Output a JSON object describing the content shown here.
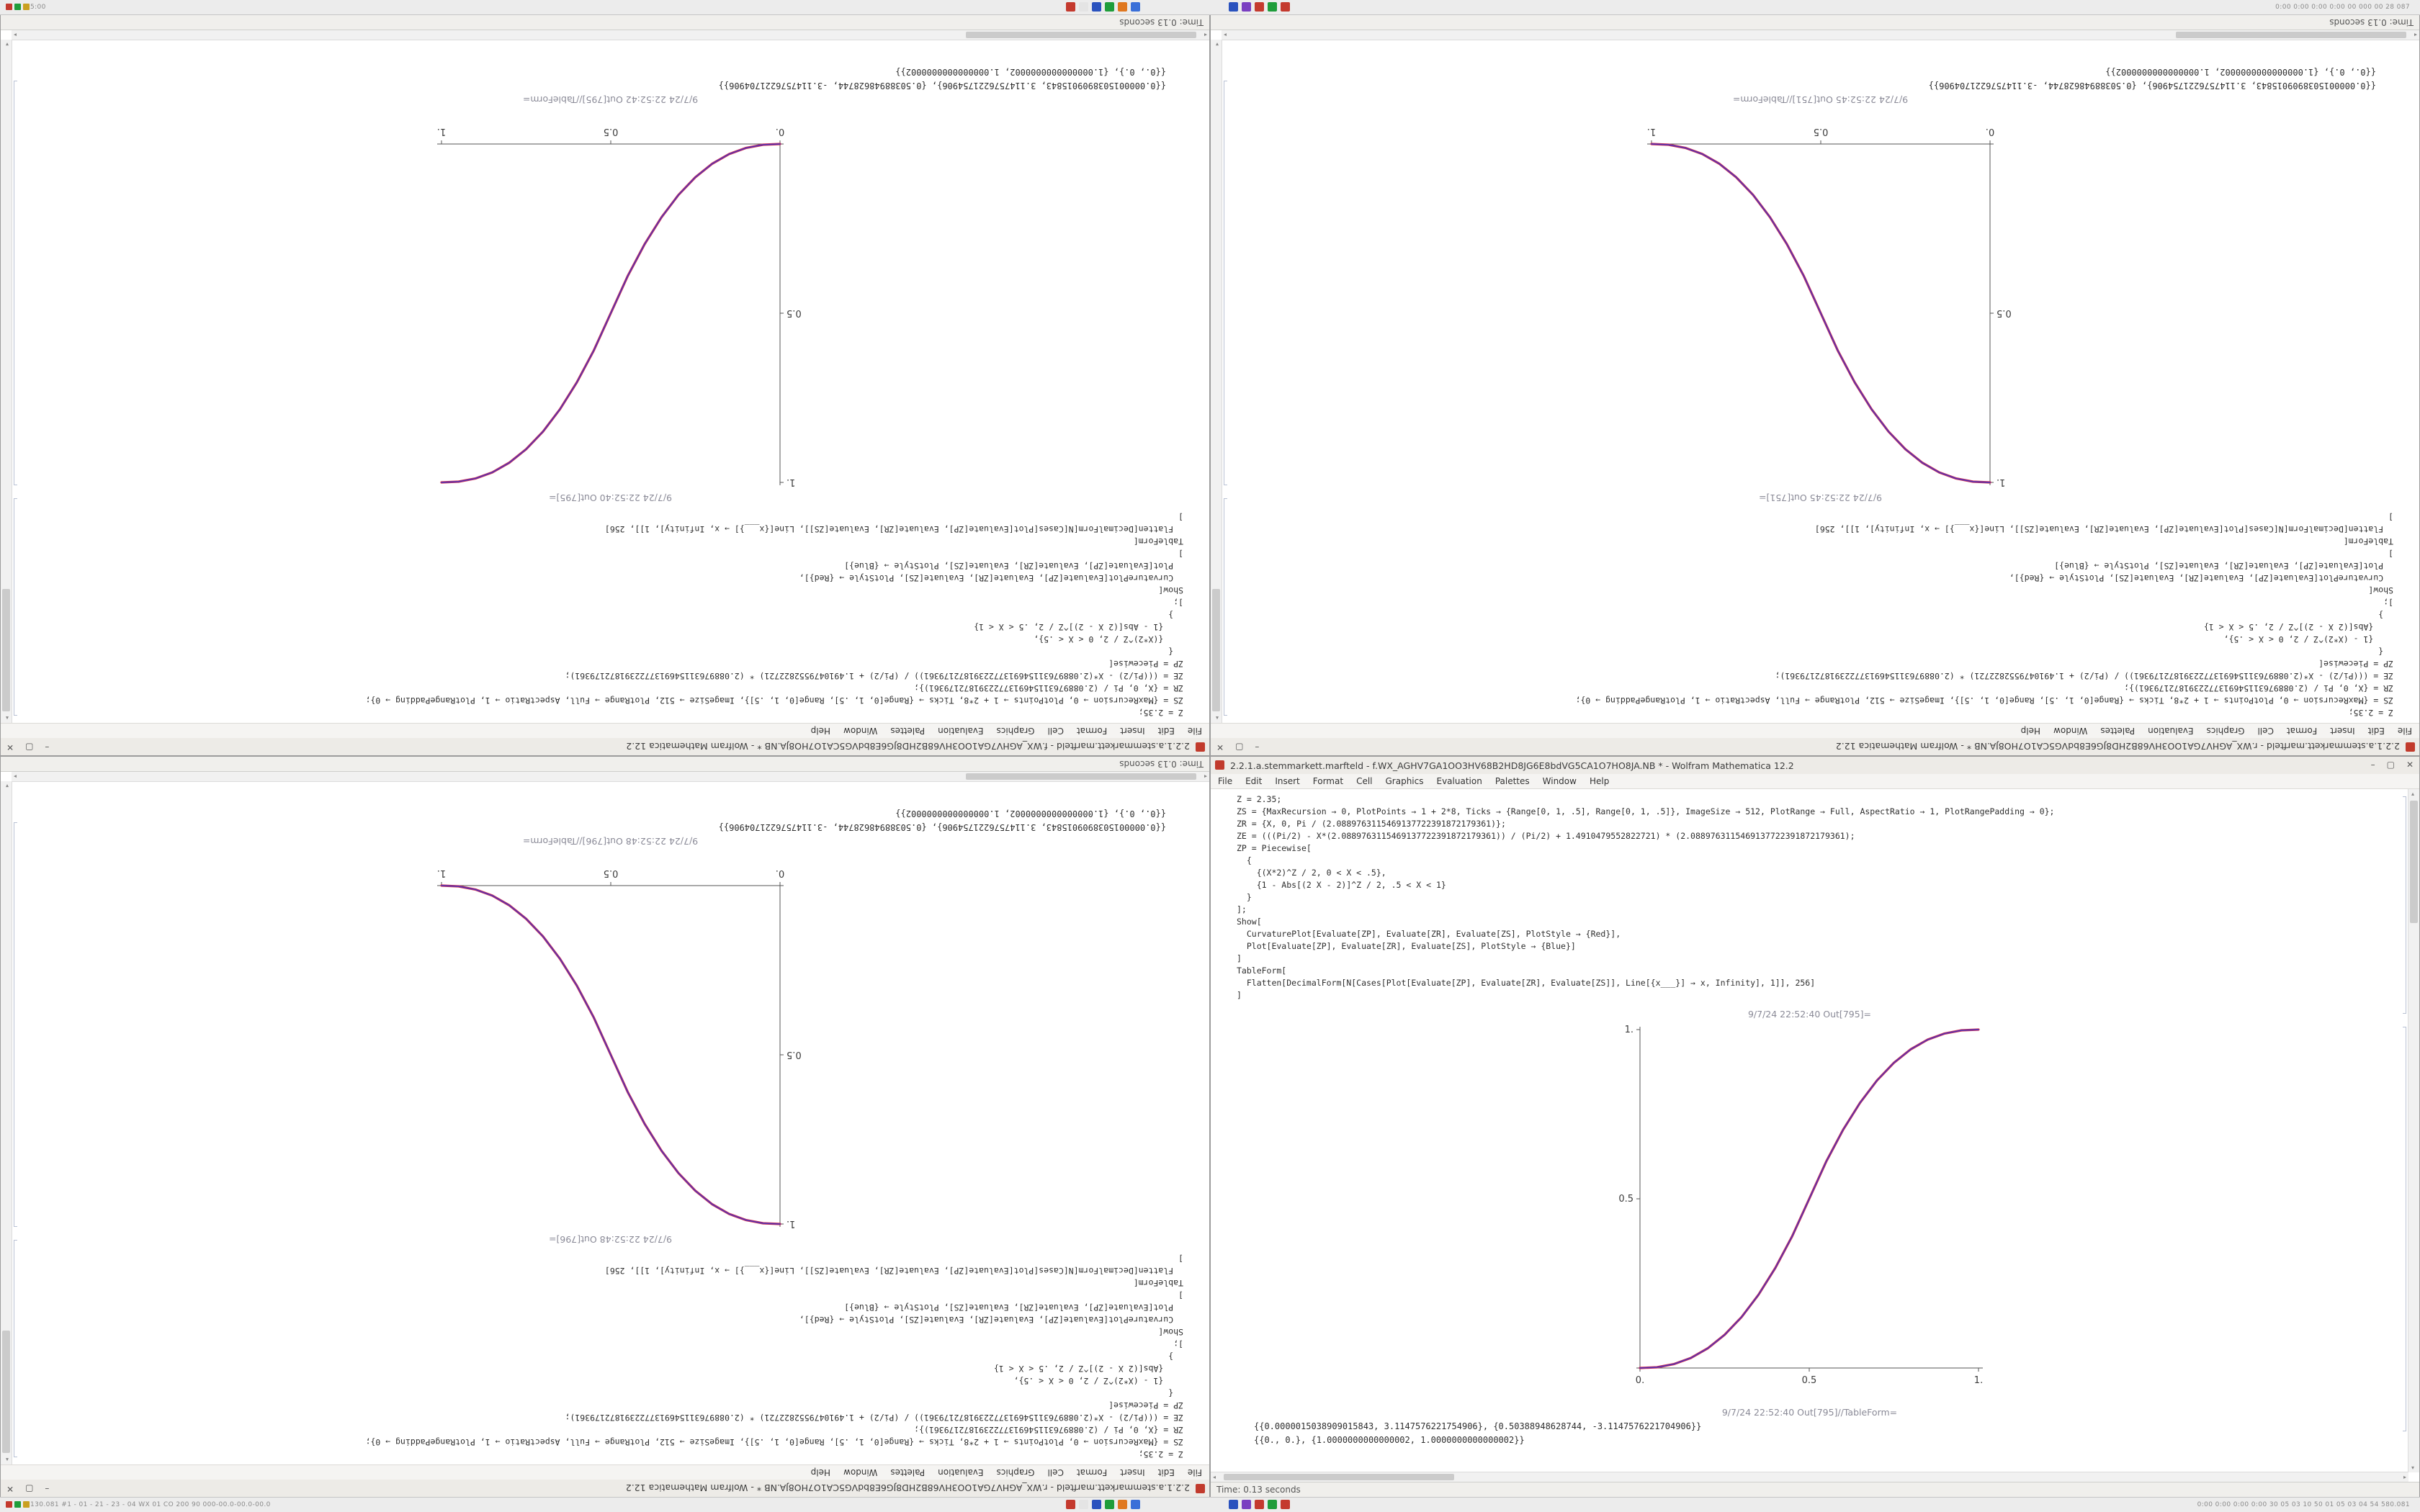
{
  "screen": {
    "taskbar_top": {
      "left_text": "5:00",
      "right_text": "0:00  0:00  0:00  0:00  00  000  00  28  087"
    },
    "taskbar_bottom": {
      "left_text": "130.081  #1 - 01 - 21 - 23 - 04  WX 01 CO 200 90  000-00.0-00.0-00.0",
      "right_text": "0:00 0:00 0:00 0:00  30 05 03 10 50 01 05 03 04 54  580.081"
    },
    "cluster_a": [
      "#c43a2e",
      "#e4e4e4",
      "#2a52be",
      "#1f9d3a",
      "#e07820",
      "#3a6fd8"
    ],
    "cluster_b": [
      "#2a52be",
      "#7a3fc1",
      "#c43a2e",
      "#1f9d3a",
      "#c43a2e"
    ],
    "mini_left": [
      "#c43a2e",
      "#1f9d3a",
      "#caa020"
    ]
  },
  "chrome": {
    "minimize": "–",
    "maximize": "▢",
    "close": "✕",
    "up": "▴",
    "down": "▾",
    "left": "◂",
    "right": "▸"
  },
  "menu": {
    "items": [
      "File",
      "Edit",
      "Insert",
      "Format",
      "Cell",
      "Graphics",
      "Evaluation",
      "Palettes",
      "Window",
      "Help"
    ]
  },
  "windows": [
    {
      "title": "2.2.1.a.stemmarkett.marfteld - f.WX_AGHV7GA1OO3HV68B2HD8JG6E8bdVG5CA1O7HO8JA.NB * - Wolfram Mathematica 12.2",
      "status": "Time: 0.13 seconds",
      "code": "Z = 2.35;\nZS = {MaxRecursion → 0, PlotPoints → 1 + 2*8, Ticks → {Range[0, 1, .5], Range[0, 1, .5]}, ImageSize → 512, PlotRange → Full, AspectRatio → 1, PlotRangePadding → 0};\nZR = {X, 0, Pi / (2.0889763115469137722391872179361)};\nZE = (((Pi/2) - X*(2.0889763115469137722391872179361)) / (Pi/2) + 1.4910479552822721) * (2.0889763115469137722391872179361);\nZP = Piecewise[\n  {\n    {(X*2)^Z / 2, 0 < X < .5},\n    {1 - Abs[(2 X - 2)]^Z / 2, .5 < X < 1}\n  }\n];\nShow[\n  CurvaturePlot[Evaluate[ZP], Evaluate[ZR], Evaluate[ZS], PlotStyle → {Red}],\n  Plot[Evaluate[ZP], Evaluate[ZR], Evaluate[ZS], PlotStyle → {Blue}]\n]\nTableForm[\n  Flatten[DecimalForm[N[Cases[Plot[Evaluate[ZP], Evaluate[ZR], Evaluate[ZS]], Line[{x___}] → x, Infinity], 1]], 256]\n]",
      "out_plot_label": "9/7/24 22:52:40 Out[795]=",
      "out_table_label": "9/7/24 22:52:42 Out[795]//TableForm=",
      "table_rows": [
        "{{0.0000015038909015843, 3.1147576221754906}, {0.50388948628744, -3.1147576221704906}}",
        "{{0., 0.}, {1.0000000000000002, 1.0000000000000002}}"
      ]
    },
    {
      "title": "2.2.1.a.stemmarkett.marfteld - r.WX_AGHV7GA1OO3HV68B2HD8JG6E8bdVG5CA1O7HO8JA.NB * - Wolfram Mathematica 12.2",
      "status": "Time: 0.13 seconds",
      "code": "Z = 2.35;\nZS = {MaxRecursion → 0, PlotPoints → 1 + 2*8, Ticks → {Range[0, 1, .5], Range[0, 1, .5]}, ImageSize → 512, PlotRange → Full, AspectRatio → 1, PlotRangePadding → 0};\nZR = {X, 0, Pi / (2.0889763115469137722391872179361)};\nZE = (((Pi/2) - X*(2.0889763115469137722391872179361)) / (Pi/2) + 1.4910479552822721) * (2.0889763115469137722391872179361);\nZP = Piecewise[\n  {\n    {1 - (X*2)^Z / 2, 0 < X < .5},\n    {Abs[(2 X - 2)]^Z / 2, .5 < X < 1}\n  }\n];\nShow[\n  CurvaturePlot[Evaluate[ZP], Evaluate[ZR], Evaluate[ZS], PlotStyle → {Red}],\n  Plot[Evaluate[ZP], Evaluate[ZR], Evaluate[ZS], PlotStyle → {Blue}]\n]\nTableForm[\n  Flatten[DecimalForm[N[Cases[Plot[Evaluate[ZP], Evaluate[ZR], Evaluate[ZS]], Line[{x___}] → x, Infinity], 1]], 256]\n]",
      "out_plot_label": "9/7/24 22:52:45 Out[751]=",
      "out_table_label": "9/7/24 22:52:45 Out[751]//TableForm=",
      "table_rows": [
        "{{0.0000015038909015843, 3.1147576221754906}, {0.50388948628744, -3.1147576221704906}}",
        "{{0., 0.}, {1.0000000000000002, 1.0000000000000002}}"
      ]
    },
    {
      "title": "2.2.1.a.stemmarkett.marfteld - r.WX_AGHV7GA1OO3HV68B2HD8JG6E8bdVG5CA1O7HO8JA.NB * - Wolfram Mathematica 12.2",
      "status": "Time: 0.13 seconds",
      "code": "Z = 2.35;\nZS = {MaxRecursion → 0, PlotPoints → 1 + 2*8, Ticks → {Range[0, 1, .5], Range[0, 1, .5]}, ImageSize → 512, PlotRange → Full, AspectRatio → 1, PlotRangePadding → 0};\nZR = {X, 0, Pi / (2.0889763115469137722391872179361)};\nZE = (((Pi/2) - X*(2.0889763115469137722391872179361)) / (Pi/2) + 1.4910479552822721) * (2.0889763115469137722391872179361);\nZP = Piecewise[\n  {\n    {1 - (X*2)^Z / 2, 0 < X < .5},\n    {Abs[(2 X - 2)]^Z / 2, .5 < X < 1}\n  }\n];\nShow[\n  CurvaturePlot[Evaluate[ZP], Evaluate[ZR], Evaluate[ZS], PlotStyle → {Red}],\n  Plot[Evaluate[ZP], Evaluate[ZR], Evaluate[ZS], PlotStyle → {Blue}]\n]\nTableForm[\n  Flatten[DecimalForm[N[Cases[Plot[Evaluate[ZP], Evaluate[ZR], Evaluate[ZS]], Line[{x___}] → x, Infinity], 1]], 256]\n]",
      "out_plot_label": "9/7/24 22:52:48 Out[796]=",
      "out_table_label": "9/7/24 22:52:48 Out[796]//TableForm=",
      "table_rows": [
        "{{0.0000015038909015843, 3.1147576221754906}, {0.50388948628744, -3.1147576221704906}}",
        "{{0., 0.}, {1.0000000000000002, 1.0000000000000002}}"
      ]
    },
    {
      "title": "2.2.1.a.stemmarkett.marfteld - f.WX_AGHV7GA1OO3HV68B2HD8JG6E8bdVG5CA1O7HO8JA.NB * - Wolfram Mathematica 12.2",
      "status": "Time: 0.13 seconds",
      "code": "Z = 2.35;\nZS = {MaxRecursion → 0, PlotPoints → 1 + 2*8, Ticks → {Range[0, 1, .5], Range[0, 1, .5]}, ImageSize → 512, PlotRange → Full, AspectRatio → 1, PlotRangePadding → 0};\nZR = {X, 0, Pi / (2.0889763115469137722391872179361)};\nZE = (((Pi/2) - X*(2.0889763115469137722391872179361)) / (Pi/2) + 1.4910479552822721) * (2.0889763115469137722391872179361);\nZP = Piecewise[\n  {\n    {(X*2)^Z / 2, 0 < X < .5},\n    {1 - Abs[(2 X - 2)]^Z / 2, .5 < X < 1}\n  }\n];\nShow[\n  CurvaturePlot[Evaluate[ZP], Evaluate[ZR], Evaluate[ZS], PlotStyle → {Red}],\n  Plot[Evaluate[ZP], Evaluate[ZR], Evaluate[ZS], PlotStyle → {Blue}]\n]\nTableForm[\n  Flatten[DecimalForm[N[Cases[Plot[Evaluate[ZP], Evaluate[ZR], Evaluate[ZS]], Line[{x___}] → x, Infinity], 1]], 256]\n]",
      "out_plot_label": "9/7/24 22:52:40 Out[795]=",
      "out_table_label": "9/7/24 22:52:40 Out[795]//TableForm=",
      "table_rows": [
        "{{0.0000015038909015843, 3.1147576221754906}, {0.50388948628744, -3.1147576221704906}}",
        "{{0., 0.}, {1.0000000000000002, 1.0000000000000002}}"
      ]
    }
  ],
  "chart_data": [
    {
      "type": "line",
      "title": "",
      "xlabel": "",
      "ylabel": "",
      "x": [
        0,
        0.05,
        0.1,
        0.15,
        0.2,
        0.25,
        0.3,
        0.35,
        0.4,
        0.45,
        0.5,
        0.55,
        0.6,
        0.65,
        0.7,
        0.75,
        0.8,
        0.85,
        0.9,
        0.95,
        1
      ],
      "series": [
        {
          "name": "CurvaturePlot (Red)",
          "color": "#d62e4e",
          "values": [
            0,
            0.0022,
            0.0114,
            0.0295,
            0.058,
            0.098,
            0.1505,
            0.2163,
            0.296,
            0.3903,
            0.5,
            0.6097,
            0.704,
            0.7837,
            0.8495,
            0.902,
            0.942,
            0.9705,
            0.9886,
            0.9978,
            1
          ]
        },
        {
          "name": "Plot (Blue)",
          "color": "#3d33c4",
          "values": [
            0,
            0.0022,
            0.0114,
            0.0295,
            0.058,
            0.098,
            0.1505,
            0.2163,
            0.296,
            0.3903,
            0.5,
            0.6097,
            0.704,
            0.7837,
            0.8495,
            0.902,
            0.942,
            0.9705,
            0.9886,
            0.9978,
            1
          ]
        }
      ],
      "xlim": [
        0,
        1
      ],
      "ylim": [
        0,
        1
      ],
      "xticks": [
        0,
        0.5,
        1
      ],
      "yticks": [
        0,
        0.5,
        1
      ],
      "xtick_labels": [
        "0.",
        "0.5",
        "1."
      ],
      "ytick_labels": [
        "",
        "0.5",
        "1."
      ],
      "grid": false,
      "legend": "none"
    },
    {
      "type": "line",
      "title": "",
      "xlabel": "",
      "ylabel": "",
      "x": [
        0,
        0.05,
        0.1,
        0.15,
        0.2,
        0.25,
        0.3,
        0.35,
        0.4,
        0.45,
        0.5,
        0.55,
        0.6,
        0.65,
        0.7,
        0.75,
        0.8,
        0.85,
        0.9,
        0.95,
        1
      ],
      "series": [
        {
          "name": "CurvaturePlot (Red)",
          "color": "#d62e4e",
          "values": [
            1,
            0.9978,
            0.9886,
            0.9705,
            0.942,
            0.902,
            0.8495,
            0.7837,
            0.704,
            0.6097,
            0.5,
            0.3903,
            0.296,
            0.2163,
            0.1505,
            0.098,
            0.058,
            0.0295,
            0.0114,
            0.0022,
            0
          ]
        },
        {
          "name": "Plot (Blue)",
          "color": "#3d33c4",
          "values": [
            1,
            0.9978,
            0.9886,
            0.9705,
            0.942,
            0.902,
            0.8495,
            0.7837,
            0.704,
            0.6097,
            0.5,
            0.3903,
            0.296,
            0.2163,
            0.1505,
            0.098,
            0.058,
            0.0295,
            0.0114,
            0.0022,
            0
          ]
        }
      ],
      "xlim": [
        0,
        1
      ],
      "ylim": [
        0,
        1
      ],
      "xticks": [
        0,
        0.5,
        1
      ],
      "yticks": [
        0,
        0.5,
        1
      ],
      "xtick_labels": [
        "0.",
        "0.5",
        "1."
      ],
      "ytick_labels": [
        "",
        "0.5",
        "1."
      ],
      "grid": false,
      "legend": "none"
    },
    {
      "type": "line",
      "title": "",
      "xlabel": "",
      "ylabel": "",
      "x": [
        0,
        0.05,
        0.1,
        0.15,
        0.2,
        0.25,
        0.3,
        0.35,
        0.4,
        0.45,
        0.5,
        0.55,
        0.6,
        0.65,
        0.7,
        0.75,
        0.8,
        0.85,
        0.9,
        0.95,
        1
      ],
      "series": [
        {
          "name": "CurvaturePlot (Red)",
          "color": "#d62e4e",
          "values": [
            1,
            0.9978,
            0.9886,
            0.9705,
            0.942,
            0.902,
            0.8495,
            0.7837,
            0.704,
            0.6097,
            0.5,
            0.3903,
            0.296,
            0.2163,
            0.1505,
            0.098,
            0.058,
            0.0295,
            0.0114,
            0.0022,
            0
          ]
        },
        {
          "name": "Plot (Blue)",
          "color": "#3d33c4",
          "values": [
            1,
            0.9978,
            0.9886,
            0.9705,
            0.942,
            0.902,
            0.8495,
            0.7837,
            0.704,
            0.6097,
            0.5,
            0.3903,
            0.296,
            0.2163,
            0.1505,
            0.098,
            0.058,
            0.0295,
            0.0114,
            0.0022,
            0
          ]
        }
      ],
      "xlim": [
        0,
        1
      ],
      "ylim": [
        0,
        1
      ],
      "xticks": [
        0,
        0.5,
        1
      ],
      "yticks": [
        0,
        0.5,
        1
      ],
      "xtick_labels": [
        "0.",
        "0.5",
        "1."
      ],
      "ytick_labels": [
        "",
        "0.5",
        "1."
      ],
      "grid": false,
      "legend": "none"
    },
    {
      "type": "line",
      "title": "",
      "xlabel": "",
      "ylabel": "",
      "x": [
        0,
        0.05,
        0.1,
        0.15,
        0.2,
        0.25,
        0.3,
        0.35,
        0.4,
        0.45,
        0.5,
        0.55,
        0.6,
        0.65,
        0.7,
        0.75,
        0.8,
        0.85,
        0.9,
        0.95,
        1
      ],
      "series": [
        {
          "name": "CurvaturePlot (Red)",
          "color": "#d62e4e",
          "values": [
            0,
            0.0022,
            0.0114,
            0.0295,
            0.058,
            0.098,
            0.1505,
            0.2163,
            0.296,
            0.3903,
            0.5,
            0.6097,
            0.704,
            0.7837,
            0.8495,
            0.902,
            0.942,
            0.9705,
            0.9886,
            0.9978,
            1
          ]
        },
        {
          "name": "Plot (Blue)",
          "color": "#3d33c4",
          "values": [
            0,
            0.0022,
            0.0114,
            0.0295,
            0.058,
            0.098,
            0.1505,
            0.2163,
            0.296,
            0.3903,
            0.5,
            0.6097,
            0.704,
            0.7837,
            0.8495,
            0.902,
            0.942,
            0.9705,
            0.9886,
            0.9978,
            1
          ]
        }
      ],
      "xlim": [
        0,
        1
      ],
      "ylim": [
        0,
        1
      ],
      "xticks": [
        0,
        0.5,
        1
      ],
      "yticks": [
        0,
        0.5,
        1
      ],
      "xtick_labels": [
        "0.",
        "0.5",
        "1."
      ],
      "ytick_labels": [
        "",
        "0.5",
        "1."
      ],
      "grid": false,
      "legend": "none"
    }
  ]
}
